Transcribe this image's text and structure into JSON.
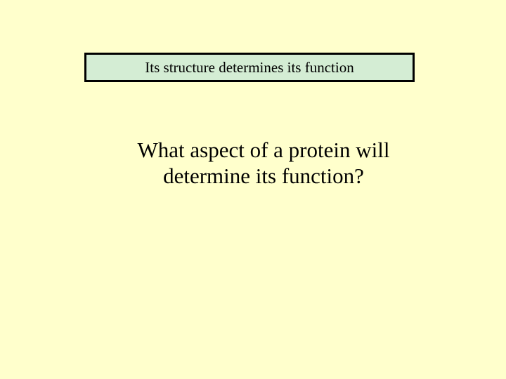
{
  "slide": {
    "background_color": "#ffffcc",
    "answer_box": {
      "text": "Its structure determines its function",
      "background_color": "#d4edd4",
      "border_color": "#000000",
      "border_width": 3,
      "font_size": 21,
      "font_family": "Times New Roman",
      "text_color": "#000000"
    },
    "question": {
      "line1": "What aspect of a protein will",
      "line2": "determine its function?",
      "font_size": 31,
      "font_family": "Times New Roman",
      "text_color": "#000000"
    }
  }
}
